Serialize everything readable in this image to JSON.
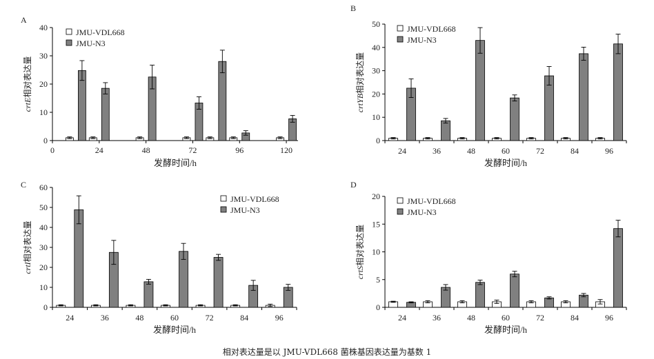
{
  "caption": "相对表达量是以 JMU-VDL668 菌株基因表达量为基数 1",
  "colors": {
    "vdl": "#ffffff",
    "n3": "#808080",
    "axis": "#000000"
  },
  "chart_data": [
    {
      "type": "bar",
      "panel": "A",
      "gene": "crtE",
      "ylabel_suffix": "相对表达量",
      "xlabel": "发酵时间/h",
      "xlim": [
        0,
        126
      ],
      "x_ticks": [
        0,
        24,
        48,
        72,
        96,
        120
      ],
      "ylim": [
        0,
        40
      ],
      "y_ticks": [
        0,
        10,
        20,
        30,
        40
      ],
      "legend_position": "top-left",
      "x": [
        12,
        24,
        48,
        72,
        84,
        96,
        120
      ],
      "series": [
        {
          "name": "JMU-VDL668",
          "values": [
            1,
            1,
            1,
            1,
            1,
            1,
            1
          ],
          "errors": [
            0.3,
            0.3,
            0.3,
            0.3,
            0.3,
            0.3,
            0.3
          ]
        },
        {
          "name": "JMU-N3",
          "values": [
            24.8,
            18.5,
            22.5,
            13.3,
            28.0,
            2.7,
            7.7
          ],
          "errors": [
            3.5,
            2.0,
            4.2,
            2.2,
            4.0,
            0.8,
            1.2
          ]
        }
      ]
    },
    {
      "type": "bar",
      "panel": "B",
      "gene": "crtYB",
      "ylabel_suffix": "相对表达量",
      "xlabel": "发酵时间/h",
      "ylim": [
        0,
        50
      ],
      "y_ticks": [
        0,
        10,
        20,
        30,
        40,
        50
      ],
      "legend_position": "top-left",
      "categories": [
        "24",
        "36",
        "48",
        "60",
        "72",
        "84",
        "96"
      ],
      "series": [
        {
          "name": "JMU-VDL668",
          "values": [
            1,
            1,
            1,
            1,
            1,
            1,
            1
          ],
          "errors": [
            0.3,
            0.3,
            0.3,
            0.3,
            0.3,
            0.3,
            0.3
          ]
        },
        {
          "name": "JMU-N3",
          "values": [
            22.5,
            8.5,
            43.0,
            18.3,
            27.8,
            37.3,
            41.5
          ],
          "errors": [
            4.0,
            1.0,
            5.5,
            1.3,
            4.0,
            2.8,
            4.2
          ]
        }
      ]
    },
    {
      "type": "bar",
      "panel": "C",
      "gene": "crtI",
      "ylabel_suffix": "相对表达量",
      "xlabel": "发酵时间/h",
      "ylim": [
        0,
        60
      ],
      "y_ticks": [
        0,
        10,
        20,
        30,
        40,
        50,
        60
      ],
      "legend_position": "top-right",
      "categories": [
        "24",
        "36",
        "48",
        "60",
        "72",
        "84",
        "96"
      ],
      "series": [
        {
          "name": "JMU-VDL668",
          "values": [
            1,
            1,
            1,
            1,
            1,
            1,
            1
          ],
          "errors": [
            0.3,
            0.3,
            0.3,
            0.3,
            0.3,
            0.3,
            0.6
          ]
        },
        {
          "name": "JMU-N3",
          "values": [
            48.8,
            27.5,
            12.8,
            28.0,
            25.0,
            11.0,
            10.0
          ],
          "errors": [
            7.0,
            6.0,
            1.2,
            4.0,
            1.5,
            2.5,
            1.5
          ]
        }
      ]
    },
    {
      "type": "bar",
      "panel": "D",
      "gene": "crtS",
      "ylabel_suffix": "相对表达量",
      "xlabel": "发酵时间/h",
      "ylim": [
        0,
        20
      ],
      "y_ticks": [
        0,
        5,
        10,
        15,
        20
      ],
      "legend_position": "top-left",
      "categories": [
        "24",
        "36",
        "48",
        "60",
        "72",
        "84",
        "96"
      ],
      "series": [
        {
          "name": "JMU-VDL668",
          "values": [
            1,
            1,
            1,
            1,
            1,
            1,
            1
          ],
          "errors": [
            0.1,
            0.2,
            0.2,
            0.3,
            0.2,
            0.2,
            0.4
          ]
        },
        {
          "name": "JMU-N3",
          "values": [
            0.9,
            3.6,
            4.5,
            6.0,
            1.7,
            2.2,
            14.2
          ],
          "errors": [
            0.1,
            0.5,
            0.4,
            0.5,
            0.2,
            0.3,
            1.5
          ]
        }
      ]
    }
  ]
}
